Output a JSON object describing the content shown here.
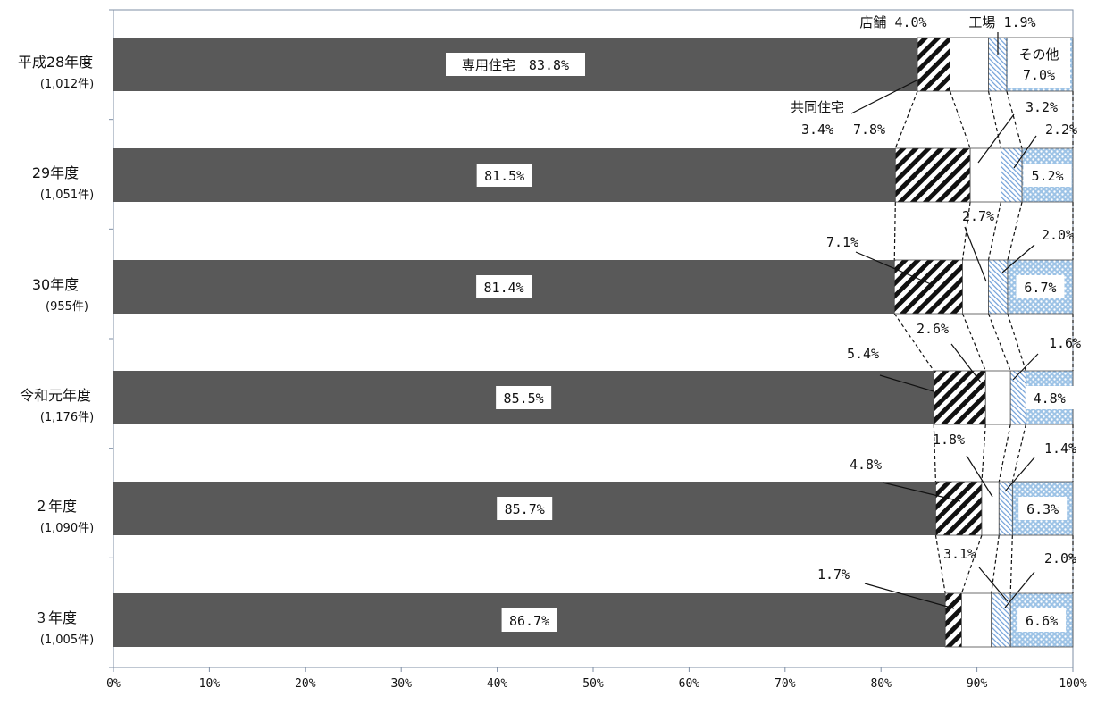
{
  "chart_data": {
    "type": "bar",
    "orientation": "horizontal",
    "stacked": "100%",
    "categories": [
      {
        "label": "平成28年度",
        "sublabel": "(1,012件)"
      },
      {
        "label": "29年度",
        "sublabel": "(1,051件)"
      },
      {
        "label": "30年度",
        "sublabel": "(955件)"
      },
      {
        "label": "令和元年度",
        "sublabel": "(1,176件)"
      },
      {
        "label": "２年度",
        "sublabel": "(1,090件)"
      },
      {
        "label": "３年度",
        "sublabel": "(1,005件)"
      }
    ],
    "series": [
      {
        "name": "専用住宅",
        "pattern": "solid",
        "color": "#595959",
        "values": [
          83.8,
          81.5,
          81.4,
          85.5,
          85.7,
          86.7
        ],
        "labels": [
          "専用住宅　83.8%",
          "81.5%",
          "81.4%",
          "85.5%",
          "85.7%",
          "86.7%"
        ]
      },
      {
        "name": "共同住宅",
        "pattern": "diagonal-hatch",
        "color": "#111111",
        "values": [
          3.4,
          7.8,
          7.1,
          5.4,
          4.8,
          1.7
        ],
        "labels": [
          "3.4%",
          "7.8%",
          "7.1%",
          "5.4%",
          "4.8%",
          "1.7%"
        ]
      },
      {
        "name": "店舗",
        "pattern": "none",
        "color": "#ffffff",
        "values": [
          4.0,
          3.2,
          2.7,
          2.6,
          1.8,
          3.1
        ],
        "labels": [
          "店舗 4.0%",
          "3.2%",
          "2.7%",
          "2.6%",
          "1.8%",
          "3.1%"
        ]
      },
      {
        "name": "工場",
        "pattern": "light-hatch",
        "color": "#9dc3e6",
        "values": [
          1.9,
          2.2,
          2.0,
          1.6,
          1.4,
          2.0
        ],
        "labels": [
          "工場 1.9%",
          "2.2%",
          "2.0%",
          "1.6%",
          "1.4%",
          "2.0%"
        ]
      },
      {
        "name": "その他",
        "pattern": "dotted",
        "color": "#9dc3e6",
        "values": [
          7.0,
          5.2,
          6.7,
          4.8,
          6.3,
          6.6
        ],
        "labels": [
          "その他 7.0%",
          "5.2%",
          "6.7%",
          "4.8%",
          "6.3%",
          "6.6%"
        ]
      }
    ],
    "xticks": [
      "0%",
      "10%",
      "20%",
      "30%",
      "40%",
      "50%",
      "60%",
      "70%",
      "80%",
      "90%",
      "100%"
    ],
    "xlim": [
      0,
      100
    ],
    "title": "",
    "xlabel": "",
    "ylabel": "",
    "legend": "none",
    "grid": false,
    "annotations": {
      "kyodo_line1": "共同住宅",
      "kyodo_line2": "3.4%",
      "tenpo": "店舗 4.0%",
      "kojo": "工場 1.9%",
      "sonota_line1": "その他",
      "sonota_line2": "7.0%"
    }
  }
}
